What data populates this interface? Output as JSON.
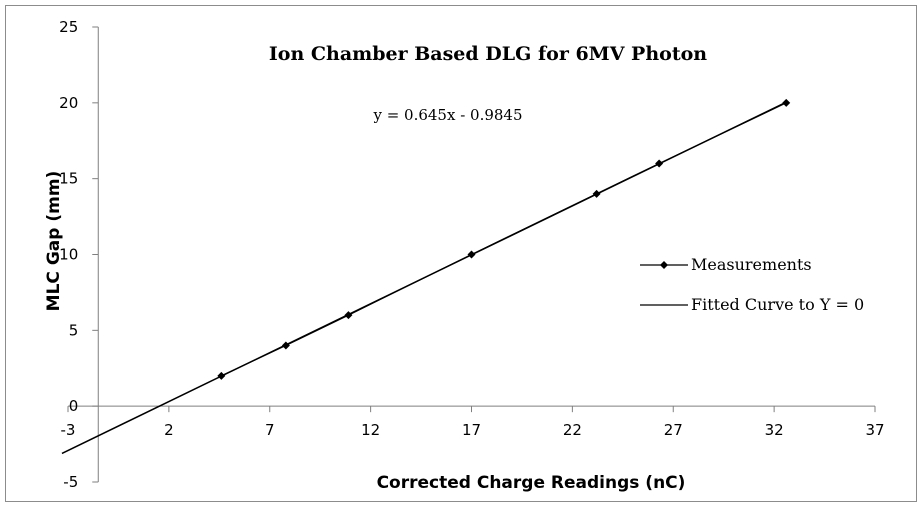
{
  "chart_data": {
    "type": "scatter",
    "title": "Ion Chamber Based DLG for 6MV Photon",
    "xlabel": "Corrected Charge Readings (nC)",
    "ylabel": "MLC Gap (mm)",
    "xlim": [
      -3,
      37
    ],
    "ylim": [
      -5,
      25
    ],
    "xticks": [
      "-3",
      "2",
      "7",
      "12",
      "17",
      "22",
      "27",
      "32",
      "37"
    ],
    "yticks": [
      "-5",
      "0",
      "5",
      "10",
      "15",
      "20",
      "25"
    ],
    "series": [
      {
        "name": "Measurements",
        "marker": "diamond",
        "color": "#000000",
        "x": [
          4.6,
          7.8,
          10.9,
          17.0,
          23.2,
          26.3,
          32.6
        ],
        "y": [
          2,
          4,
          6,
          10,
          14,
          16,
          20
        ]
      },
      {
        "name": "Fitted Curve to Y = 0",
        "marker": "none",
        "color": "#000000",
        "x": [
          -3.3,
          32.6
        ],
        "y": [
          -3.114,
          20.04
        ]
      }
    ],
    "annotation": "y = 0.645x  - 0.9845",
    "legend_position": "right",
    "grid": false
  }
}
